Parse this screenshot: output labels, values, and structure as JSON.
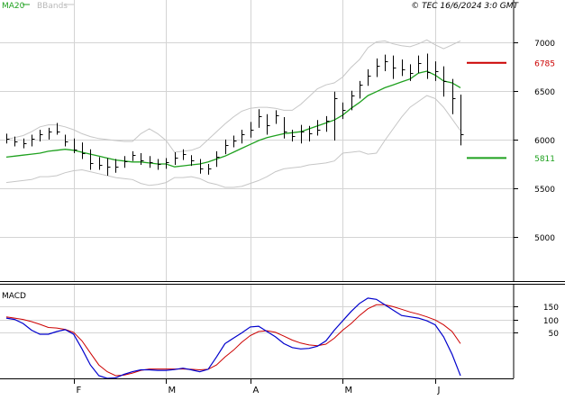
{
  "header": {
    "legend_ma": "MA20",
    "legend_bands": "BBands",
    "copyright": "© TEC 16/6/2024 3:0 GMT"
  },
  "colors": {
    "grid": "#d4d4d4",
    "axis": "#000000",
    "bars": "#000000",
    "ma20": "#1fa11f",
    "bands": "#c6c6c6",
    "resistance": "#cc0000",
    "support": "#1fa11f",
    "macd": "#0000cc",
    "signal": "#cc0000",
    "legend_ma": "#1fa11f",
    "legend_bands": "#b8b8b8"
  },
  "chart_data": [
    {
      "type": "ohlc",
      "y_ticks": [
        "7000",
        "6500",
        "6000",
        "5500",
        "5000"
      ],
      "y_tick_values": [
        7000,
        6500,
        6000,
        5500,
        5000
      ],
      "ylim": [
        4550,
        7300
      ],
      "x_tick_labels": [
        "F",
        "M",
        "A",
        "M",
        "J"
      ],
      "x_tick_index": [
        8,
        19,
        29,
        40,
        51
      ],
      "levels": [
        {
          "value": 6785,
          "label": "6785",
          "kind": "resistance"
        },
        {
          "value": 5811,
          "label": "5811",
          "kind": "support"
        }
      ],
      "series": [
        {
          "name": "MA20",
          "values": [
            5820,
            5830,
            5840,
            5850,
            5860,
            5880,
            5890,
            5900,
            5890,
            5870,
            5850,
            5830,
            5810,
            5790,
            5780,
            5770,
            5770,
            5760,
            5750,
            5750,
            5720,
            5730,
            5740,
            5750,
            5770,
            5800,
            5830,
            5870,
            5910,
            5950,
            5990,
            6020,
            6040,
            6060,
            6070,
            6080,
            6110,
            6140,
            6170,
            6200,
            6250,
            6320,
            6380,
            6450,
            6490,
            6530,
            6560,
            6590,
            6620,
            6680,
            6700,
            6660,
            6600,
            6580,
            6530
          ]
        },
        {
          "name": "BBands upper",
          "values": [
            6000,
            6020,
            6040,
            6080,
            6130,
            6150,
            6150,
            6130,
            6100,
            6060,
            6030,
            6010,
            6000,
            5990,
            5980,
            5980,
            6060,
            6110,
            6060,
            5990,
            5870,
            5880,
            5890,
            5920,
            6000,
            6080,
            6160,
            6230,
            6290,
            6320,
            6330,
            6330,
            6320,
            6300,
            6300,
            6360,
            6440,
            6520,
            6560,
            6580,
            6640,
            6740,
            6820,
            6940,
            7000,
            7010,
            6980,
            6960,
            6950,
            6980,
            7020,
            6970,
            6930,
            6970,
            7010
          ]
        },
        {
          "name": "BBands lower",
          "values": [
            5560,
            5570,
            5580,
            5590,
            5620,
            5620,
            5630,
            5660,
            5680,
            5690,
            5670,
            5650,
            5630,
            5610,
            5600,
            5590,
            5550,
            5530,
            5540,
            5560,
            5610,
            5610,
            5620,
            5600,
            5560,
            5540,
            5510,
            5510,
            5520,
            5550,
            5580,
            5620,
            5670,
            5700,
            5710,
            5720,
            5740,
            5750,
            5760,
            5780,
            5860,
            5870,
            5880,
            5850,
            5860,
            5990,
            6110,
            6230,
            6330,
            6390,
            6450,
            6420,
            6330,
            6210,
            6090
          ]
        },
        {
          "name": "Price",
          "type": "ohlc",
          "values": [
            {
              "h": 6060,
              "l": 5960,
              "c": 6010
            },
            {
              "h": 6030,
              "l": 5930,
              "c": 5980
            },
            {
              "h": 6010,
              "l": 5910,
              "c": 5960
            },
            {
              "h": 6050,
              "l": 5930,
              "c": 6010
            },
            {
              "h": 6100,
              "l": 5980,
              "c": 6050
            },
            {
              "h": 6120,
              "l": 6000,
              "c": 6080
            },
            {
              "h": 6170,
              "l": 6050,
              "c": 6080
            },
            {
              "h": 6050,
              "l": 5930,
              "c": 5980
            },
            {
              "h": 6010,
              "l": 5860,
              "c": 5900
            },
            {
              "h": 5970,
              "l": 5800,
              "c": 5860
            },
            {
              "h": 5900,
              "l": 5690,
              "c": 5760
            },
            {
              "h": 5820,
              "l": 5690,
              "c": 5740
            },
            {
              "h": 5810,
              "l": 5630,
              "c": 5720
            },
            {
              "h": 5800,
              "l": 5660,
              "c": 5720
            },
            {
              "h": 5830,
              "l": 5710,
              "c": 5780
            },
            {
              "h": 5880,
              "l": 5780,
              "c": 5840
            },
            {
              "h": 5860,
              "l": 5740,
              "c": 5790
            },
            {
              "h": 5830,
              "l": 5710,
              "c": 5770
            },
            {
              "h": 5800,
              "l": 5690,
              "c": 5750
            },
            {
              "h": 5810,
              "l": 5700,
              "c": 5770
            },
            {
              "h": 5870,
              "l": 5740,
              "c": 5810
            },
            {
              "h": 5900,
              "l": 5790,
              "c": 5850
            },
            {
              "h": 5840,
              "l": 5730,
              "c": 5790
            },
            {
              "h": 5800,
              "l": 5650,
              "c": 5700
            },
            {
              "h": 5750,
              "l": 5640,
              "c": 5700
            },
            {
              "h": 5880,
              "l": 5720,
              "c": 5820
            },
            {
              "h": 6000,
              "l": 5850,
              "c": 5940
            },
            {
              "h": 6040,
              "l": 5920,
              "c": 5990
            },
            {
              "h": 6100,
              "l": 5960,
              "c": 6050
            },
            {
              "h": 6180,
              "l": 6020,
              "c": 6100
            },
            {
              "h": 6310,
              "l": 6120,
              "c": 6240
            },
            {
              "h": 6260,
              "l": 6050,
              "c": 6150
            },
            {
              "h": 6300,
              "l": 6160,
              "c": 6250
            },
            {
              "h": 6230,
              "l": 6010,
              "c": 6080
            },
            {
              "h": 6100,
              "l": 5980,
              "c": 6040
            },
            {
              "h": 6150,
              "l": 5960,
              "c": 6080
            },
            {
              "h": 6140,
              "l": 5980,
              "c": 6060
            },
            {
              "h": 6200,
              "l": 6040,
              "c": 6100
            },
            {
              "h": 6240,
              "l": 6080,
              "c": 6190
            },
            {
              "h": 6490,
              "l": 5990,
              "c": 6420
            },
            {
              "h": 6380,
              "l": 6210,
              "c": 6300
            },
            {
              "h": 6500,
              "l": 6300,
              "c": 6450
            },
            {
              "h": 6600,
              "l": 6420,
              "c": 6560
            },
            {
              "h": 6720,
              "l": 6550,
              "c": 6650
            },
            {
              "h": 6830,
              "l": 6640,
              "c": 6760
            },
            {
              "h": 6870,
              "l": 6700,
              "c": 6800
            },
            {
              "h": 6860,
              "l": 6620,
              "c": 6740
            },
            {
              "h": 6820,
              "l": 6650,
              "c": 6720
            },
            {
              "h": 6770,
              "l": 6600,
              "c": 6680
            },
            {
              "h": 6860,
              "l": 6680,
              "c": 6780
            },
            {
              "h": 6880,
              "l": 6620,
              "c": 6690
            },
            {
              "h": 6800,
              "l": 6600,
              "c": 6700
            },
            {
              "h": 6750,
              "l": 6440,
              "c": 6600
            },
            {
              "h": 6620,
              "l": 6260,
              "c": 6420
            },
            {
              "h": 6460,
              "l": 5940,
              "c": 6050
            }
          ]
        }
      ]
    },
    {
      "type": "line",
      "title": "MACD",
      "y_ticks": [
        "150",
        "100",
        "50"
      ],
      "y_tick_values": [
        150,
        100,
        50
      ],
      "ylim": [
        -120,
        230
      ],
      "series": [
        {
          "name": "MACD",
          "values": [
            105,
            100,
            85,
            60,
            45,
            45,
            55,
            62,
            45,
            -10,
            -70,
            -110,
            -120,
            -118,
            -105,
            -95,
            -88,
            -88,
            -90,
            -90,
            -87,
            -82,
            -88,
            -95,
            -86,
            -40,
            10,
            30,
            50,
            72,
            75,
            55,
            35,
            10,
            -5,
            -10,
            -8,
            0,
            20,
            60,
            95,
            130,
            160,
            180,
            175,
            155,
            135,
            115,
            110,
            105,
            95,
            80,
            35,
            -30,
            -110
          ]
        },
        {
          "name": "Signal",
          "values": [
            110,
            105,
            100,
            92,
            82,
            70,
            68,
            63,
            52,
            20,
            -25,
            -70,
            -95,
            -110,
            -108,
            -100,
            -90,
            -85,
            -85,
            -85,
            -85,
            -85,
            -86,
            -88,
            -86,
            -70,
            -40,
            -15,
            15,
            40,
            55,
            58,
            52,
            38,
            23,
            12,
            5,
            2,
            8,
            30,
            60,
            85,
            115,
            140,
            155,
            155,
            148,
            138,
            128,
            120,
            110,
            98,
            80,
            55,
            10
          ]
        }
      ]
    }
  ]
}
